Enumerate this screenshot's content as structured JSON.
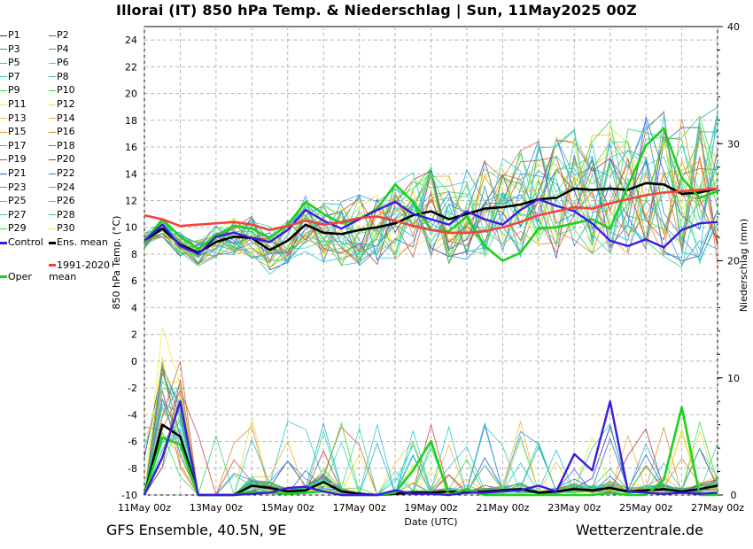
{
  "title": "Illorai  (IT)  850 hPa Temp. & Niederschlag | Sun, 11May2025 00Z",
  "footer": {
    "left": "GFS Ensemble, 40.5N, 9E",
    "right": "Wetterzentrale.de"
  },
  "chart_data": {
    "type": "line",
    "xlabel": "Date (UTC)",
    "ylabel_left": "850 hPa Temp. (°C)",
    "ylabel_right": "Niederschlag (mm)",
    "x_ticks": [
      "11May 00z",
      "13May 00z",
      "15May 00z",
      "17May 00z",
      "19May 00z",
      "21May 00z",
      "23May 00z",
      "25May 00z",
      "27May 00z"
    ],
    "x_range_hours": [
      0,
      384
    ],
    "ylim_left": [
      -10,
      25
    ],
    "yticks_left": [
      -10,
      -8,
      -6,
      -4,
      -2,
      0,
      2,
      4,
      6,
      8,
      10,
      12,
      14,
      16,
      18,
      20,
      22,
      24
    ],
    "ylim_right": [
      0,
      40
    ],
    "yticks_right": [
      0,
      10,
      20,
      30,
      40
    ],
    "grid": true,
    "legend_position": "left",
    "legend": [
      {
        "label": "P1",
        "color": "#1f2d9e"
      },
      {
        "label": "P2",
        "color": "#2b59d8"
      },
      {
        "label": "P3",
        "color": "#2a8fe0"
      },
      {
        "label": "P4",
        "color": "#1ba7c9"
      },
      {
        "label": "P5",
        "color": "#22c2d2"
      },
      {
        "label": "P6",
        "color": "#2fd0b3"
      },
      {
        "label": "P7",
        "color": "#31d68f"
      },
      {
        "label": "P8",
        "color": "#2fd070"
      },
      {
        "label": "P9",
        "color": "#35d54a"
      },
      {
        "label": "P10",
        "color": "#36d82d"
      },
      {
        "label": "P11",
        "color": "#ecec2c"
      },
      {
        "label": "P12",
        "color": "#f1da2a"
      },
      {
        "label": "P13",
        "color": "#f0c62c"
      },
      {
        "label": "P14",
        "color": "#eeb12c"
      },
      {
        "label": "P15",
        "color": "#ec9c2d"
      },
      {
        "label": "P16",
        "color": "#d98b2e"
      },
      {
        "label": "P17",
        "color": "#e07a35"
      },
      {
        "label": "P18",
        "color": "#d0583a"
      },
      {
        "label": "P19",
        "color": "#c9453d"
      },
      {
        "label": "P20",
        "color": "#b23240"
      },
      {
        "label": "P21",
        "color": "#2d65d3"
      },
      {
        "label": "P22",
        "color": "#2a86e0"
      },
      {
        "label": "P23",
        "color": "#2aa2d9"
      },
      {
        "label": "P24",
        "color": "#25bfd4"
      },
      {
        "label": "P25",
        "color": "#25cfc1"
      },
      {
        "label": "P26",
        "color": "#2bd6a2"
      },
      {
        "label": "P27",
        "color": "#2ed880"
      },
      {
        "label": "P28",
        "color": "#33d95c"
      },
      {
        "label": "P29",
        "color": "#38d937"
      },
      {
        "label": "P30",
        "color": "#eded2d"
      },
      {
        "label": "Control",
        "color": "#3a1be0"
      },
      {
        "label": "Ens. mean",
        "color": "#000000"
      },
      {
        "label": "1991-2020 mean",
        "color": "#f2433e"
      },
      {
        "label": "Oper",
        "color": "#1cd11c"
      }
    ],
    "highlight_series": [
      {
        "name": "Ens. mean",
        "color": "#000000",
        "x": [
          0,
          12,
          24,
          36,
          48,
          60,
          72,
          84,
          96,
          108,
          120,
          132,
          144,
          156,
          168,
          180,
          192,
          204,
          216,
          228,
          240,
          252,
          264,
          276,
          288,
          300,
          312,
          324,
          336,
          348,
          360,
          372,
          384
        ],
        "y": [
          9.0,
          9.9,
          8.7,
          8.1,
          8.9,
          9.3,
          9.2,
          8.3,
          9.0,
          10.2,
          9.6,
          9.5,
          9.8,
          10.0,
          10.3,
          10.9,
          11.2,
          10.6,
          11.0,
          11.4,
          11.5,
          11.7,
          12.1,
          12.2,
          12.9,
          12.8,
          12.9,
          12.8,
          13.3,
          13.2,
          12.5,
          12.6,
          12.9
        ],
        "precip": [
          0,
          6,
          5,
          0,
          0,
          0,
          0.8,
          0.6,
          0.3,
          0.4,
          1.1,
          0.3,
          0.1,
          0,
          0.1,
          0.2,
          0.2,
          0.3,
          0.2,
          0.3,
          0.4,
          0.5,
          0.2,
          0.3,
          0.5,
          0.4,
          0.6,
          0.3,
          0.4,
          0.5,
          0.3,
          0.5,
          0.8
        ]
      },
      {
        "name": "Oper",
        "color": "#1cd11c",
        "x": [
          0,
          12,
          24,
          36,
          48,
          60,
          72,
          84,
          96,
          108,
          120,
          132,
          144,
          156,
          168,
          180,
          192,
          204,
          216,
          228,
          240,
          252,
          264,
          276,
          288,
          300,
          312,
          324,
          336,
          348,
          360,
          372,
          384
        ],
        "y": [
          8.9,
          10.6,
          9.3,
          8.4,
          9.4,
          10.1,
          9.9,
          9.2,
          10.2,
          11.9,
          11.0,
          10.3,
          10.6,
          11.4,
          13.2,
          11.9,
          9.8,
          9.7,
          10.8,
          8.6,
          7.5,
          8.1,
          9.9,
          10.0,
          10.3,
          10.6,
          9.9,
          13.1,
          16.1,
          17.4,
          13.7,
          12.2,
          12.7
        ],
        "precip": [
          0,
          4.9,
          4.3,
          0,
          0,
          0,
          0.3,
          0.2,
          0.1,
          0.2,
          0.3,
          0,
          0,
          0,
          0.2,
          2.1,
          4.6,
          0,
          0.5,
          0,
          0,
          0,
          0,
          0,
          0,
          0,
          0.2,
          0,
          0,
          1.3,
          7.5,
          0,
          0
        ]
      },
      {
        "name": "Control",
        "color": "#3a1be0",
        "x": [
          0,
          12,
          24,
          36,
          48,
          60,
          72,
          84,
          96,
          108,
          120,
          132,
          144,
          156,
          168,
          180,
          192,
          204,
          216,
          228,
          240,
          252,
          264,
          276,
          288,
          300,
          312,
          324,
          336,
          348,
          360,
          372,
          384
        ],
        "y": [
          9.0,
          10.2,
          8.6,
          8.0,
          9.3,
          9.6,
          9.2,
          8.9,
          9.8,
          11.3,
          10.5,
          9.9,
          10.6,
          11.3,
          11.9,
          11.0,
          10.6,
          10.2,
          11.2,
          10.6,
          10.2,
          11.3,
          12.1,
          11.6,
          11.2,
          10.3,
          9.0,
          8.6,
          9.1,
          8.5,
          9.8,
          10.3,
          10.4
        ],
        "precip": [
          0,
          3.2,
          8.0,
          0,
          0,
          0,
          0.1,
          0.2,
          0.6,
          0.7,
          0.3,
          0,
          0,
          0,
          0.4,
          0.1,
          0.1,
          0,
          0.2,
          0.2,
          0.3,
          0.4,
          0.8,
          0.3,
          3.5,
          2.1,
          8.0,
          0.3,
          0.2,
          0.1,
          0.2,
          0.1,
          0.2
        ]
      },
      {
        "name": "1991-2020 mean",
        "color": "#f2433e",
        "x": [
          0,
          12,
          24,
          36,
          48,
          60,
          72,
          84,
          96,
          108,
          120,
          132,
          144,
          156,
          168,
          180,
          192,
          204,
          216,
          228,
          240,
          252,
          264,
          276,
          288,
          300,
          312,
          324,
          336,
          348,
          360,
          372,
          384
        ],
        "y": [
          10.9,
          10.6,
          10.1,
          10.2,
          10.3,
          10.4,
          10.2,
          9.8,
          10.1,
          10.5,
          10.2,
          10.4,
          10.7,
          10.8,
          10.5,
          10.1,
          9.8,
          9.6,
          9.6,
          9.7,
          10.0,
          10.4,
          10.9,
          11.2,
          11.5,
          11.4,
          11.8,
          12.1,
          12.4,
          12.6,
          12.7,
          12.8,
          12.9
        ]
      }
    ]
  }
}
